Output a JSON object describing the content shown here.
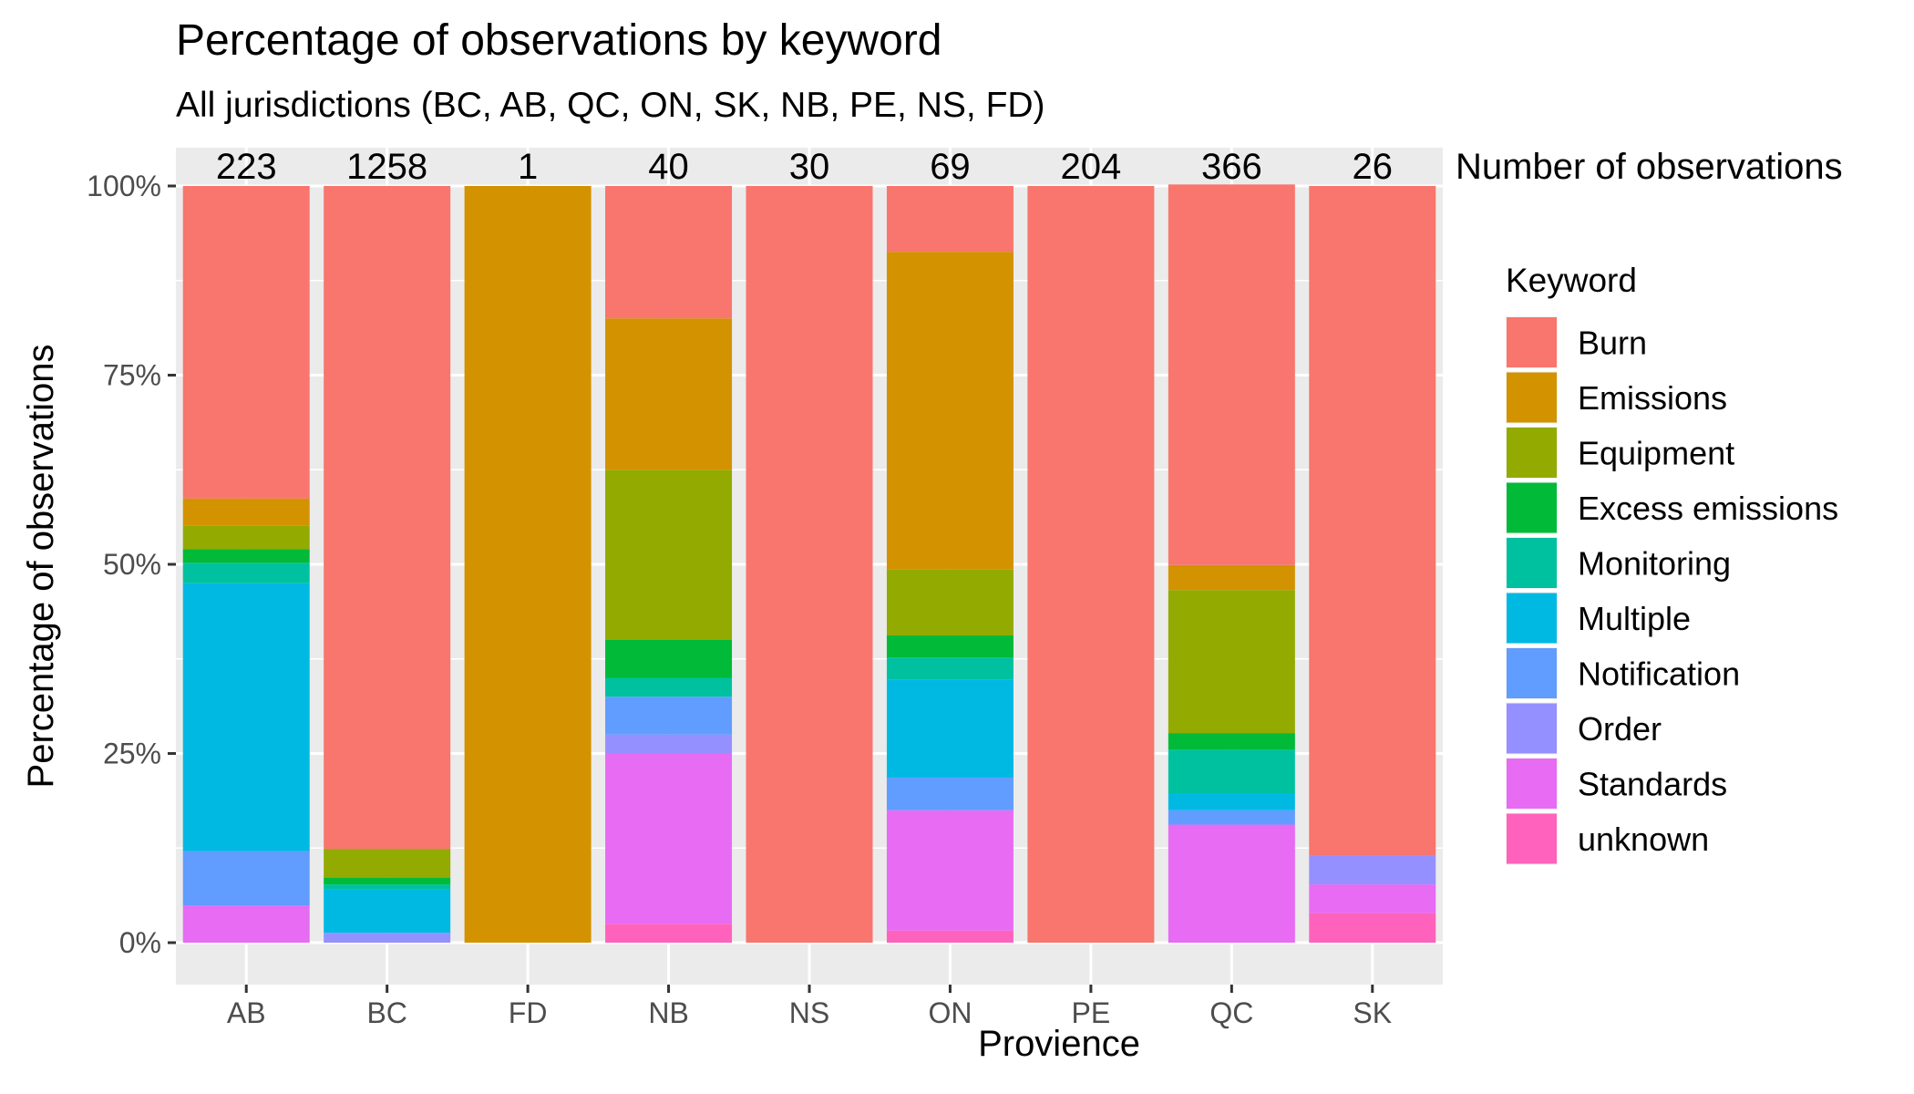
{
  "chart_data": {
    "type": "bar",
    "stacked": true,
    "normalized": true,
    "title": "Percentage of observations by keyword",
    "subtitle": "All jurisdictions (BC, AB, QC, ON, SK, NB, PE, NS, FD)",
    "xlabel": "Provience",
    "ylabel": "Percentage of observations",
    "y_ticks": [
      "0%",
      "25%",
      "50%",
      "75%",
      "100%"
    ],
    "ylim": [
      0,
      100
    ],
    "grid": true,
    "categories": [
      "AB",
      "BC",
      "FD",
      "NB",
      "NS",
      "ON",
      "PE",
      "QC",
      "SK"
    ],
    "counts": [
      "223",
      "1258",
      "1",
      "40",
      "30",
      "69",
      "204",
      "366",
      "26"
    ],
    "counts_label": "Number of observations",
    "legend_title": "Keyword",
    "legend_position": "right",
    "series": [
      {
        "name": "Burn",
        "color": "#F8766D",
        "values": [
          41.3,
          87.6,
          0,
          17.5,
          100,
          8.7,
          100,
          50.3,
          88.5
        ]
      },
      {
        "name": "Emissions",
        "color": "#D39200",
        "values": [
          3.6,
          0,
          100,
          20.0,
          0,
          42.0,
          0,
          3.3,
          0
        ]
      },
      {
        "name": "Equipment",
        "color": "#93AA00",
        "values": [
          3.1,
          3.8,
          0,
          22.5,
          0,
          8.7,
          0,
          18.9,
          0
        ]
      },
      {
        "name": "Excess emissions",
        "color": "#00BA38",
        "values": [
          1.8,
          0.9,
          0,
          5.0,
          0,
          2.9,
          0,
          2.2,
          0
        ]
      },
      {
        "name": "Monitoring",
        "color": "#00C19F",
        "values": [
          2.7,
          0.6,
          0,
          2.5,
          0,
          2.9,
          0,
          5.8,
          0
        ]
      },
      {
        "name": "Multiple",
        "color": "#00B9E3",
        "values": [
          35.4,
          5.8,
          0,
          0,
          0,
          13.0,
          0,
          2.2,
          0
        ]
      },
      {
        "name": "Notification",
        "color": "#619CFF",
        "values": [
          7.2,
          0,
          0,
          5.0,
          0,
          4.3,
          0,
          1.9,
          0
        ]
      },
      {
        "name": "Order",
        "color": "#9590FF",
        "values": [
          0,
          1.3,
          0,
          2.5,
          0,
          0,
          0,
          0,
          3.8
        ]
      },
      {
        "name": "Standards",
        "color": "#E76BF3",
        "values": [
          4.9,
          0,
          0,
          22.5,
          0,
          15.9,
          0,
          15.6,
          3.8
        ]
      },
      {
        "name": "unknown",
        "color": "#FF62BC",
        "values": [
          0,
          0,
          0,
          2.5,
          0,
          1.6,
          0,
          0,
          3.9
        ]
      }
    ]
  }
}
